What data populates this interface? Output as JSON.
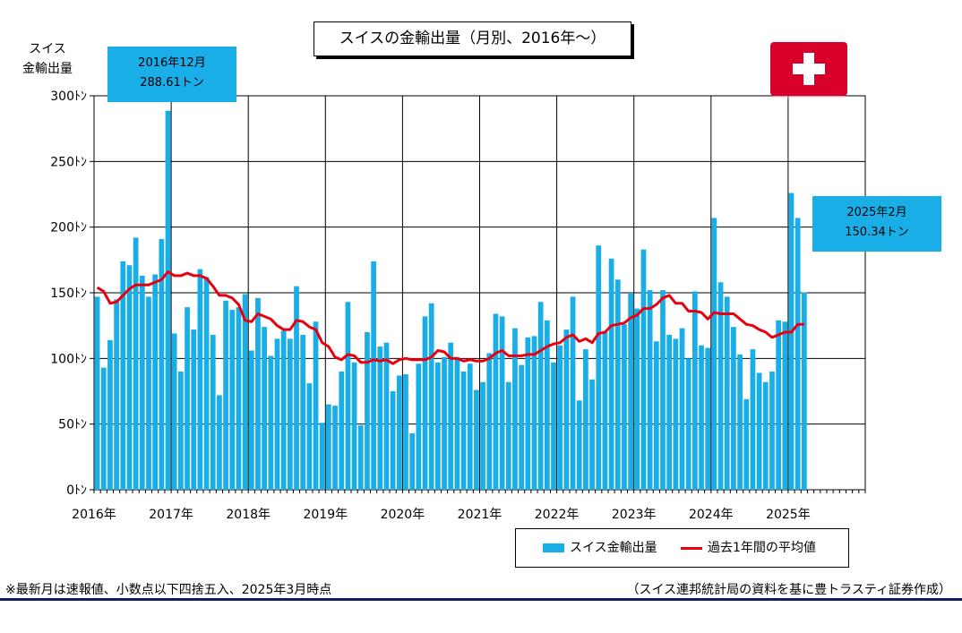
{
  "page": {
    "title": "スイスの金輸出量（月別、2016年～）",
    "y_title_line1": "スイス",
    "y_title_line2": "金輸出量",
    "footnote": "※最新月は速報値、小数点以下四捨五入、2025年3月時点",
    "source": "（スイス連邦統計局の資料を基に豊トラスティ証券作成）",
    "callout_left": {
      "line1": "2016年12月",
      "line2": "288.61トン"
    },
    "callout_right": {
      "line1": "2025年2月",
      "line2": "150.34トン"
    },
    "flag_icon": "swiss-flag-icon"
  },
  "colors": {
    "bar": "#1aaee8",
    "line": "#e8000f",
    "flag_red": "#d8002a"
  },
  "chart_data": {
    "type": "bar",
    "start_month": "2016-01",
    "x_tick_labels": [
      "2016年",
      "2017年",
      "2018年",
      "2019年",
      "2020年",
      "2021年",
      "2022年",
      "2023年",
      "2024年",
      "2025年"
    ],
    "y_tick_labels": [
      "0ﾄﾝ",
      "50ﾄﾝ",
      "100ﾄﾝ",
      "150ﾄﾝ",
      "200ﾄﾝ",
      "250ﾄﾝ",
      "300ﾄﾝ"
    ],
    "ylim": [
      0,
      300
    ],
    "grid": true,
    "legend_position": "bottom-right",
    "series": [
      {
        "name": "スイス金輸出量",
        "type": "bar",
        "values": [
          147,
          93,
          114,
          145,
          174,
          171,
          192,
          163,
          147,
          164,
          191,
          288.61,
          119,
          90,
          139,
          122,
          168,
          162,
          118,
          72,
          144,
          137,
          139,
          149,
          106,
          146,
          124,
          102,
          115,
          121,
          115,
          155,
          118,
          81,
          128,
          51,
          65,
          64,
          90,
          143,
          97,
          49,
          120,
          174,
          109,
          112,
          75,
          87,
          88,
          43,
          96,
          132,
          142,
          97,
          101,
          112,
          101,
          90,
          96,
          76,
          82,
          104,
          134,
          132,
          82,
          123,
          95,
          116,
          117,
          143,
          129,
          97,
          110,
          122,
          147,
          68,
          107,
          84,
          186,
          120,
          176,
          160,
          126,
          150,
          138,
          183,
          152,
          113,
          152,
          118,
          115,
          123,
          100,
          151,
          110,
          108,
          207,
          158,
          147,
          124,
          103,
          69,
          107,
          89,
          82,
          90,
          129,
          128,
          226,
          207,
          150.34
        ]
      },
      {
        "name": "過去1年間の平均値",
        "type": "line",
        "values": [
          154,
          151,
          142,
          143,
          148,
          153,
          156,
          156,
          156,
          158,
          160,
          166,
          163,
          163,
          165,
          163,
          163,
          161,
          155,
          148,
          148,
          146,
          141,
          129,
          128,
          134,
          132,
          130,
          125,
          122,
          122,
          129,
          128,
          124,
          122,
          112,
          109,
          101,
          99,
          103,
          102,
          97,
          97,
          99,
          98,
          99,
          96,
          99,
          100,
          99,
          99,
          99,
          101,
          106,
          105,
          100,
          100,
          98,
          99,
          98,
          98,
          100,
          104,
          106,
          102,
          102,
          102,
          103,
          103,
          106,
          109,
          111,
          112,
          116,
          118,
          113,
          115,
          112,
          119,
          120,
          125,
          126,
          127,
          131,
          133,
          138,
          138,
          141,
          146,
          148,
          142,
          142,
          136,
          136,
          135,
          130,
          135,
          134,
          134,
          134,
          130,
          126,
          125,
          122,
          120,
          116,
          118,
          120,
          120,
          126,
          126
        ]
      }
    ],
    "annotations": [
      {
        "label": "2016年12月 288.61トン",
        "month": "2016-12"
      },
      {
        "label": "2025年2月 150.34トン",
        "month": "2025-02"
      }
    ]
  }
}
